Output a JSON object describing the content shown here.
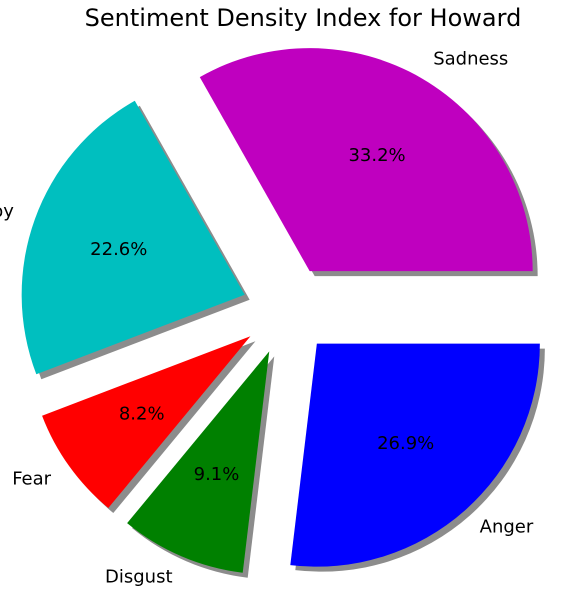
{
  "chart_data": {
    "type": "pie",
    "title": "Sentiment Density Index for Howard",
    "categories": [
      "Sadness",
      "Joy",
      "Fear",
      "Disgust",
      "Anger"
    ],
    "values": [
      33.2,
      22.6,
      8.2,
      9.1,
      26.9
    ],
    "labels": [
      "33.2%",
      "22.6%",
      "8.2%",
      "9.1%",
      "26.9%"
    ],
    "colors": [
      "#bf00bf",
      "#00bfbf",
      "#ff0000",
      "#008000",
      "#0000ff"
    ],
    "start_angle": 0,
    "shadow": true,
    "exploded": true
  }
}
